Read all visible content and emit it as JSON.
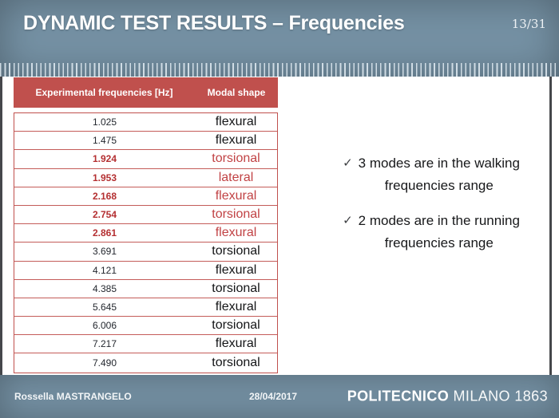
{
  "slide": {
    "title": "DYNAMIC TEST RESULTS – Frequencies",
    "page_number": "13/31"
  },
  "table": {
    "headers": [
      "Experimental frequencies [Hz]",
      "Modal shape"
    ],
    "rows": [
      {
        "frequency": "1.025",
        "shape": "flexural",
        "highlight": false
      },
      {
        "frequency": "1.475",
        "shape": "flexural",
        "highlight": false
      },
      {
        "frequency": "1.924",
        "shape": "torsional",
        "highlight": true
      },
      {
        "frequency": "1.953",
        "shape": "lateral",
        "highlight": true
      },
      {
        "frequency": "2.168",
        "shape": "flexural",
        "highlight": true
      },
      {
        "frequency": "2.754",
        "shape": "torsional",
        "highlight": true
      },
      {
        "frequency": "2.861",
        "shape": "flexural",
        "highlight": true
      },
      {
        "frequency": "3.691",
        "shape": "torsional",
        "highlight": false
      },
      {
        "frequency": "4.121",
        "shape": "flexural",
        "highlight": false
      },
      {
        "frequency": "4.385",
        "shape": "torsional",
        "highlight": false
      },
      {
        "frequency": "5.645",
        "shape": "flexural",
        "highlight": false
      },
      {
        "frequency": "6.006",
        "shape": "torsional",
        "highlight": false
      },
      {
        "frequency": "7.217",
        "shape": "flexural",
        "highlight": false
      },
      {
        "frequency": "7.490",
        "shape": "torsional",
        "highlight": false
      }
    ]
  },
  "notes": [
    {
      "icon": "✓",
      "text": "3 modes are in the walking\nfrequencies range"
    },
    {
      "icon": "✓",
      "text": "2 modes are in the running\nfrequencies range"
    }
  ],
  "footer": {
    "author": "Rossella MASTRANGELO",
    "date": "28/04/2017",
    "logo_bold": "POLITECNICO",
    "logo_light": "MILANO 1863"
  },
  "colors": {
    "background_blue": "#7591a4",
    "table_header_red": "#c0504d",
    "highlight_red": "#b42f31",
    "body_text": "#17181a"
  }
}
